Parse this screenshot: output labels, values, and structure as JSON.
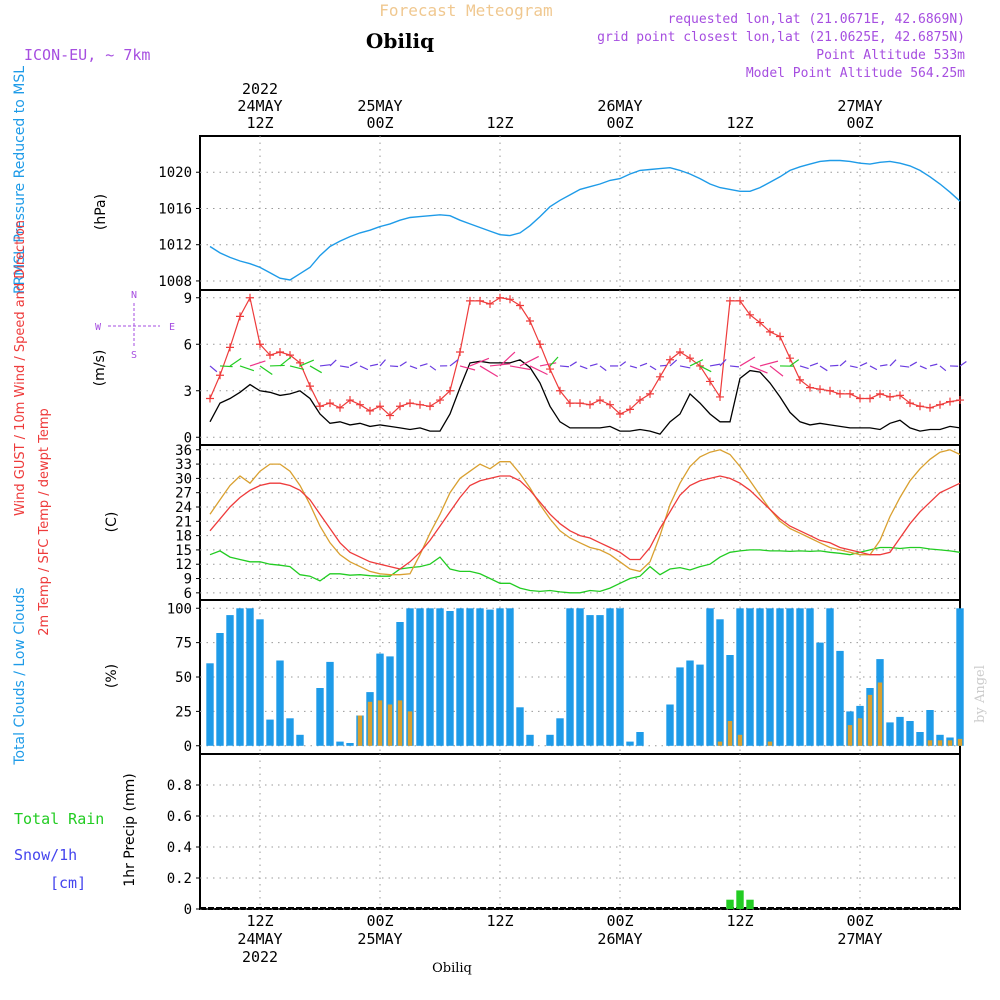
{
  "header": {
    "title": "Forecast Meteogram",
    "location": "Obiliq",
    "model": "ICON-EU, ~ 7km",
    "requested": "requested lon,lat (21.0671E, 42.6869N)",
    "grid_point": "grid point closest lon,lat (21.0625E, 42.6875N)",
    "point_altitude": "Point Altitude 533m",
    "model_altitude": "Model Point Altitude 564.25m",
    "watermark": "by Angel",
    "footer_location": "Obiliq"
  },
  "colors": {
    "pressure": "#1e9be8",
    "gust": "#ee3b3b",
    "wind": "#000000",
    "speed_dir": "#22bb22",
    "temp2m": "#ee3b3b",
    "sfc": "#d9a030",
    "dewpt": "#22cc22",
    "total_cloud": "#1e9be8",
    "low_cloud": "#d9a030",
    "rain": "#22cc22",
    "snow": "#4444ee",
    "purple": "#a64ee0"
  },
  "time_axis": {
    "top": [
      {
        "t": 6,
        "lines": [
          "2022",
          "24MAY",
          "12Z"
        ]
      },
      {
        "t": 18,
        "lines": [
          "25MAY",
          "00Z"
        ]
      },
      {
        "t": 30,
        "lines": [
          "12Z"
        ]
      },
      {
        "t": 42,
        "lines": [
          "26MAY",
          "00Z"
        ]
      },
      {
        "t": 54,
        "lines": [
          "12Z"
        ]
      },
      {
        "t": 66,
        "lines": [
          "27MAY",
          "00Z"
        ]
      }
    ],
    "bottom": [
      {
        "t": 6,
        "lines": [
          "12Z",
          "24MAY",
          "2022"
        ]
      },
      {
        "t": 18,
        "lines": [
          "00Z",
          "25MAY"
        ]
      },
      {
        "t": 30,
        "lines": [
          "12Z"
        ]
      },
      {
        "t": 42,
        "lines": [
          "00Z",
          "26MAY"
        ]
      },
      {
        "t": 54,
        "lines": [
          "12Z"
        ]
      },
      {
        "t": 66,
        "lines": [
          "00Z",
          "27MAY"
        ]
      }
    ]
  },
  "chart_data": [
    {
      "type": "line",
      "title": "PRMSL Pressure Reduced to MSL",
      "ylabel": "(hPa)",
      "ylim": [
        1007,
        1024
      ],
      "yticks": [
        1008,
        1012,
        1016,
        1020
      ],
      "x_hours": [
        1,
        2,
        3,
        4,
        5,
        6,
        7,
        8,
        9,
        10,
        11,
        12,
        13,
        14,
        15,
        16,
        17,
        18,
        19,
        20,
        21,
        22,
        23,
        24,
        25,
        26,
        27,
        28,
        29,
        30,
        31,
        32,
        33,
        34,
        35,
        36,
        37,
        38,
        39,
        40,
        41,
        42,
        43,
        44,
        45,
        46,
        47,
        48,
        49,
        50,
        51,
        52,
        53,
        54,
        55,
        56,
        57,
        58,
        59,
        60,
        61,
        62,
        63,
        64,
        65,
        66,
        67,
        68,
        69,
        70,
        71,
        72,
        73,
        74,
        75,
        76
      ],
      "series": [
        {
          "name": "PRMSL",
          "values": [
            1011.8,
            1011.1,
            1010.6,
            1010.2,
            1009.9,
            1009.5,
            1008.9,
            1008.3,
            1008.1,
            1008.8,
            1009.5,
            1010.8,
            1011.8,
            1012.4,
            1012.9,
            1013.3,
            1013.6,
            1014.0,
            1014.3,
            1014.7,
            1015.0,
            1015.1,
            1015.2,
            1015.3,
            1015.2,
            1014.7,
            1014.3,
            1013.9,
            1013.5,
            1013.1,
            1013.0,
            1013.3,
            1014.1,
            1015.1,
            1016.2,
            1016.9,
            1017.5,
            1018.1,
            1018.4,
            1018.7,
            1019.1,
            1019.3,
            1019.8,
            1020.2,
            1020.3,
            1020.4,
            1020.5,
            1020.2,
            1019.8,
            1019.3,
            1018.7,
            1018.3,
            1018.1,
            1017.9,
            1017.9,
            1018.3,
            1018.9,
            1019.5,
            1020.2,
            1020.6,
            1020.9,
            1021.2,
            1021.3,
            1021.3,
            1021.2,
            1021.0,
            1020.9,
            1021.1,
            1021.2,
            1021.0,
            1020.7,
            1020.2,
            1019.5,
            1018.7,
            1017.8,
            1016.8
          ]
        }
      ]
    },
    {
      "type": "line",
      "title": "Wind GUST / 10m Wind / Speed and Direction",
      "ylabel": "(m/s)",
      "ylim": [
        -0.5,
        9.5
      ],
      "yticks": [
        0,
        3,
        6,
        9
      ],
      "compass": {
        "n": "N",
        "s": "S",
        "w": "W",
        "e": "E"
      },
      "x_hours": [
        1,
        2,
        3,
        4,
        5,
        6,
        7,
        8,
        9,
        10,
        11,
        12,
        13,
        14,
        15,
        16,
        17,
        18,
        19,
        20,
        21,
        22,
        23,
        24,
        25,
        26,
        27,
        28,
        29,
        30,
        31,
        32,
        33,
        34,
        35,
        36,
        37,
        38,
        39,
        40,
        41,
        42,
        43,
        44,
        45,
        46,
        47,
        48,
        49,
        50,
        51,
        52,
        53,
        54,
        55,
        56,
        57,
        58,
        59,
        60,
        61,
        62,
        63,
        64,
        65,
        66,
        67,
        68,
        69,
        70,
        71,
        72,
        73,
        74,
        75,
        76
      ],
      "series": [
        {
          "name": "Wind GUST",
          "values": [
            2.5,
            4.0,
            5.8,
            7.8,
            9.0,
            6.0,
            5.3,
            5.5,
            5.3,
            4.8,
            3.3,
            2.0,
            2.2,
            1.9,
            2.4,
            2.1,
            1.7,
            2.0,
            1.4,
            2.0,
            2.2,
            2.1,
            2.0,
            2.4,
            3.0,
            5.5,
            8.8,
            8.8,
            8.6,
            9.0,
            8.9,
            8.5,
            7.5,
            6.0,
            4.4,
            3.0,
            2.2,
            2.2,
            2.1,
            2.4,
            2.1,
            1.5,
            1.8,
            2.4,
            2.8,
            3.9,
            5.0,
            5.5,
            5.1,
            4.6,
            3.6,
            2.6,
            8.8,
            8.8,
            7.9,
            7.4,
            6.8,
            6.5,
            5.1,
            3.7,
            3.2,
            3.1,
            3.0,
            2.8,
            2.8,
            2.5,
            2.5,
            2.8,
            2.6,
            2.7,
            2.2,
            2.0,
            1.9,
            2.1,
            2.3,
            2.4
          ]
        },
        {
          "name": "10m Wind",
          "values": [
            1.0,
            2.2,
            2.5,
            2.9,
            3.4,
            3.0,
            2.9,
            2.7,
            2.8,
            3.0,
            2.5,
            1.5,
            0.9,
            1.0,
            0.8,
            0.9,
            0.7,
            0.8,
            0.7,
            0.6,
            0.5,
            0.6,
            0.4,
            0.4,
            1.5,
            3.2,
            4.8,
            4.9,
            4.8,
            4.8,
            4.8,
            5.0,
            4.5,
            3.5,
            2.0,
            1.0,
            0.6,
            0.6,
            0.6,
            0.6,
            0.7,
            0.4,
            0.4,
            0.5,
            0.4,
            0.2,
            1.0,
            1.5,
            2.8,
            2.2,
            1.5,
            1.0,
            1.0,
            3.8,
            4.3,
            4.2,
            3.5,
            2.6,
            1.6,
            1.0,
            0.8,
            0.9,
            0.8,
            0.7,
            0.6,
            0.6,
            0.6,
            0.5,
            0.9,
            1.1,
            0.6,
            0.4,
            0.5,
            0.5,
            0.7,
            0.6
          ]
        }
      ]
    },
    {
      "type": "line",
      "title": "2m Temp / SFC Temp / dewpt Temp",
      "ylabel": "(C)",
      "ylim": [
        4.5,
        37
      ],
      "yticks": [
        6,
        9,
        12,
        15,
        18,
        21,
        24,
        27,
        30,
        33,
        36
      ],
      "x_hours": [
        1,
        2,
        3,
        4,
        5,
        6,
        7,
        8,
        9,
        10,
        11,
        12,
        13,
        14,
        15,
        16,
        17,
        18,
        19,
        20,
        21,
        22,
        23,
        24,
        25,
        26,
        27,
        28,
        29,
        30,
        31,
        32,
        33,
        34,
        35,
        36,
        37,
        38,
        39,
        40,
        41,
        42,
        43,
        44,
        45,
        46,
        47,
        48,
        49,
        50,
        51,
        52,
        53,
        54,
        55,
        56,
        57,
        58,
        59,
        60,
        61,
        62,
        63,
        64,
        65,
        66,
        67,
        68,
        69,
        70,
        71,
        72,
        73,
        74,
        75,
        76
      ],
      "series": [
        {
          "name": "2m Temp",
          "values": [
            19.0,
            21.5,
            24.0,
            26.0,
            27.5,
            28.5,
            29.0,
            29.0,
            28.5,
            27.5,
            25.5,
            22.5,
            19.5,
            16.5,
            14.5,
            13.5,
            12.5,
            12.0,
            11.5,
            11.0,
            12.5,
            14.5,
            17.0,
            20.0,
            23.0,
            26.0,
            28.5,
            29.5,
            30.0,
            30.5,
            30.5,
            29.5,
            27.5,
            25.0,
            22.5,
            20.5,
            19.0,
            18.0,
            17.5,
            16.5,
            15.5,
            14.5,
            13.0,
            13.0,
            15.5,
            19.5,
            23.0,
            26.5,
            28.5,
            29.5,
            30.0,
            30.5,
            30.0,
            29.0,
            27.5,
            25.5,
            23.5,
            21.5,
            20.0,
            19.0,
            18.0,
            17.0,
            16.5,
            15.5,
            15.0,
            14.5,
            14.0,
            14.0,
            14.5,
            17.5,
            20.5,
            23.0,
            25.0,
            27.0,
            28.0,
            29.0
          ]
        },
        {
          "name": "SFC Temp",
          "values": [
            22.5,
            25.5,
            28.5,
            30.5,
            29.0,
            31.5,
            33.0,
            33.0,
            31.5,
            28.5,
            24.5,
            20.0,
            16.5,
            14.0,
            12.5,
            11.5,
            10.5,
            10.0,
            9.8,
            9.8,
            10.0,
            14.0,
            18.5,
            22.5,
            27.0,
            30.0,
            31.5,
            33.0,
            32.0,
            33.5,
            33.5,
            31.0,
            28.0,
            24.5,
            21.5,
            19.0,
            17.5,
            16.5,
            15.5,
            15.0,
            14.0,
            12.5,
            11.0,
            10.5,
            12.5,
            18.0,
            24.5,
            29.0,
            32.5,
            34.5,
            35.5,
            36.0,
            35.0,
            32.5,
            29.5,
            26.5,
            23.5,
            21.0,
            19.5,
            18.5,
            17.5,
            16.5,
            15.5,
            15.0,
            14.5,
            14.0,
            14.0,
            17.0,
            22.0,
            26.0,
            29.5,
            32.0,
            34.0,
            35.5,
            36.0,
            35.0
          ]
        },
        {
          "name": "dewpt Temp",
          "values": [
            14.0,
            14.8,
            13.5,
            13.0,
            12.5,
            12.5,
            12.0,
            11.8,
            11.5,
            9.8,
            9.5,
            8.5,
            10.0,
            10.0,
            9.7,
            9.8,
            9.6,
            9.5,
            9.5,
            11.0,
            11.3,
            11.5,
            12.0,
            13.5,
            11.0,
            10.5,
            10.5,
            10.0,
            9.0,
            8.0,
            8.0,
            7.0,
            6.5,
            6.3,
            6.5,
            6.2,
            6.0,
            6.0,
            6.5,
            6.3,
            7.0,
            8.0,
            9.0,
            9.5,
            11.5,
            9.8,
            11.0,
            11.3,
            10.8,
            11.5,
            12.0,
            13.5,
            14.5,
            14.8,
            15.0,
            15.0,
            14.8,
            14.8,
            14.7,
            14.8,
            14.7,
            14.8,
            14.5,
            14.3,
            14.0,
            14.5,
            15.0,
            15.5,
            15.5,
            15.3,
            15.5,
            15.5,
            15.2,
            15.0,
            14.8,
            14.5
          ]
        }
      ]
    },
    {
      "type": "bar",
      "title": "Total Clouds / Low Clouds",
      "ylabel": "(%)",
      "ylim": [
        -6,
        106
      ],
      "yticks": [
        0,
        25,
        50,
        75,
        100
      ],
      "x_hours": [
        1,
        2,
        3,
        4,
        5,
        6,
        7,
        8,
        9,
        10,
        11,
        12,
        13,
        14,
        15,
        16,
        17,
        18,
        19,
        20,
        21,
        22,
        23,
        24,
        25,
        26,
        27,
        28,
        29,
        30,
        31,
        32,
        33,
        34,
        35,
        36,
        37,
        38,
        39,
        40,
        41,
        42,
        43,
        44,
        45,
        46,
        47,
        48,
        49,
        50,
        51,
        52,
        53,
        54,
        55,
        56,
        57,
        58,
        59,
        60,
        61,
        62,
        63,
        64,
        65,
        66,
        67,
        68,
        69,
        70,
        71,
        72,
        73,
        74,
        75,
        76
      ],
      "series": [
        {
          "name": "Total Clouds",
          "values": [
            60,
            82,
            95,
            100,
            100,
            92,
            19,
            62,
            20,
            8,
            0,
            42,
            61,
            3,
            2,
            22,
            39,
            67,
            65,
            90,
            100,
            100,
            100,
            100,
            98,
            100,
            100,
            100,
            99,
            100,
            100,
            28,
            8,
            0,
            8,
            20,
            100,
            100,
            95,
            95,
            100,
            100,
            3,
            10,
            0,
            0,
            30,
            57,
            62,
            59,
            100,
            92,
            66,
            100,
            100,
            100,
            100,
            100,
            100,
            100,
            100,
            75,
            100,
            69,
            25,
            29,
            42,
            63,
            17,
            21,
            18,
            10,
            26,
            8,
            6,
            100
          ]
        },
        {
          "name": "Low Clouds",
          "values": [
            0,
            0,
            0,
            0,
            0,
            0,
            0,
            0,
            0,
            0,
            0,
            0,
            0,
            0,
            0,
            22,
            32,
            33,
            30,
            33,
            25,
            0,
            0,
            0,
            0,
            0,
            0,
            0,
            0,
            0,
            0,
            0,
            0,
            0,
            0,
            0,
            0,
            0,
            0,
            0,
            0,
            0,
            0,
            0,
            0,
            0,
            0,
            0,
            0,
            0,
            0,
            3,
            18,
            8,
            0,
            0,
            3,
            0,
            0,
            0,
            0,
            0,
            0,
            0,
            15,
            20,
            37,
            46,
            0,
            0,
            0,
            0,
            4,
            4,
            4,
            5
          ]
        }
      ]
    },
    {
      "type": "bar",
      "title": "Total Rain / Snow/1h [cm]",
      "ylabel": "1hr Precip (mm)",
      "ylim": [
        0,
        1.0
      ],
      "yticks": [
        0,
        0.2,
        0.4,
        0.6,
        0.8
      ],
      "legend": {
        "rain": "Total Rain",
        "snow1": "Snow/1h",
        "snow2": "[cm]"
      },
      "x_hours": [
        53,
        54,
        55
      ],
      "series": [
        {
          "name": "Total Rain",
          "values": [
            0.06,
            0.12,
            0.06
          ]
        }
      ]
    }
  ]
}
